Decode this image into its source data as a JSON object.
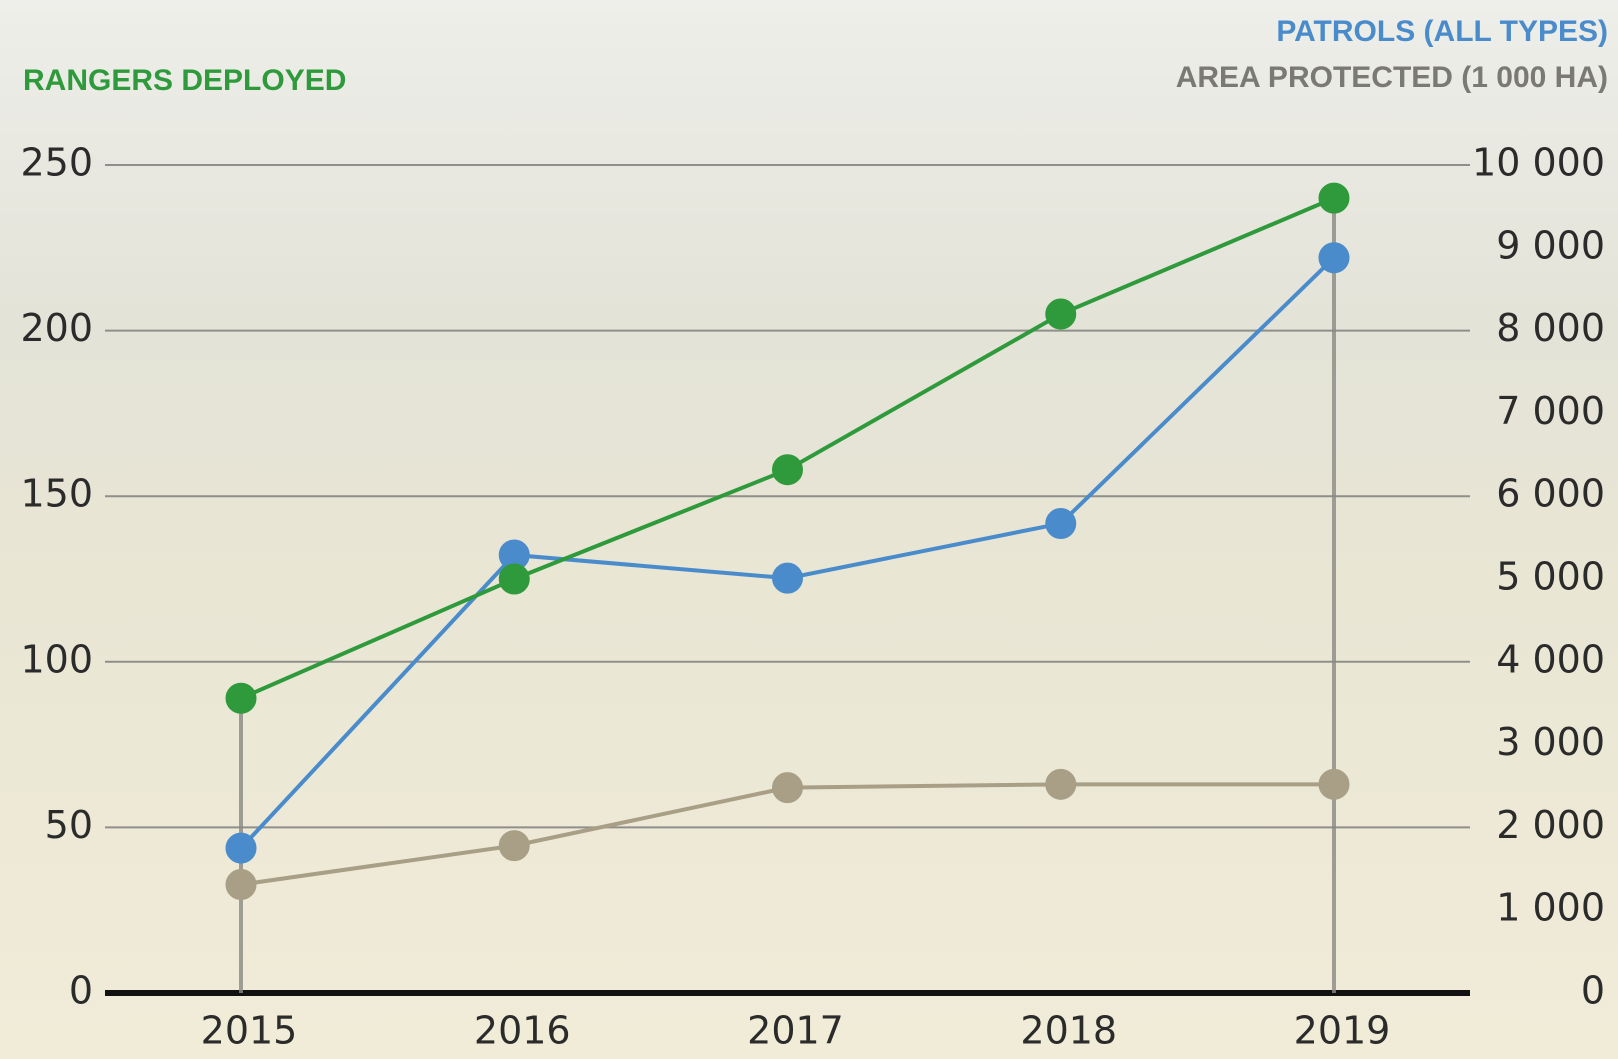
{
  "chart_data": {
    "type": "line",
    "categories": [
      "2015",
      "2016",
      "2017",
      "2018",
      "2019"
    ],
    "series": [
      {
        "name": "RANGERS DEPLOYED",
        "color": "#2f9a3b",
        "axis": "y",
        "values": [
          89,
          125,
          158,
          205,
          240
        ]
      },
      {
        "name": "PATROLS (ALL TYPES)",
        "color": "#4a8ccb",
        "axis": "y2",
        "values": [
          1750,
          5290,
          5010,
          5670,
          8880
        ]
      },
      {
        "name": "AREA PROTECTED (1 000 HA)",
        "color": "#a99f86",
        "axis": "y2",
        "values": [
          1310,
          1780,
          2480,
          2520,
          2520
        ]
      }
    ],
    "ylim": [
      0,
      250
    ],
    "yticks": [
      0,
      50,
      100,
      150,
      200,
      250
    ],
    "y2lim": [
      0,
      10000
    ],
    "y2ticks": [
      0,
      {
        "value": 1000,
        "label": "1 000"
      },
      {
        "value": 2000,
        "label": "2 000"
      },
      {
        "value": 3000,
        "label": "3 000"
      },
      {
        "value": 4000,
        "label": "4 000"
      },
      {
        "value": 5000,
        "label": "5 000"
      },
      {
        "value": 6000,
        "label": "6 000"
      },
      {
        "value": 7000,
        "label": "7 000"
      },
      {
        "value": 8000,
        "label": "8 000"
      },
      {
        "value": 9000,
        "label": "9 000"
      },
      {
        "value": 10000,
        "label": "10 000"
      }
    ],
    "grid": true
  }
}
